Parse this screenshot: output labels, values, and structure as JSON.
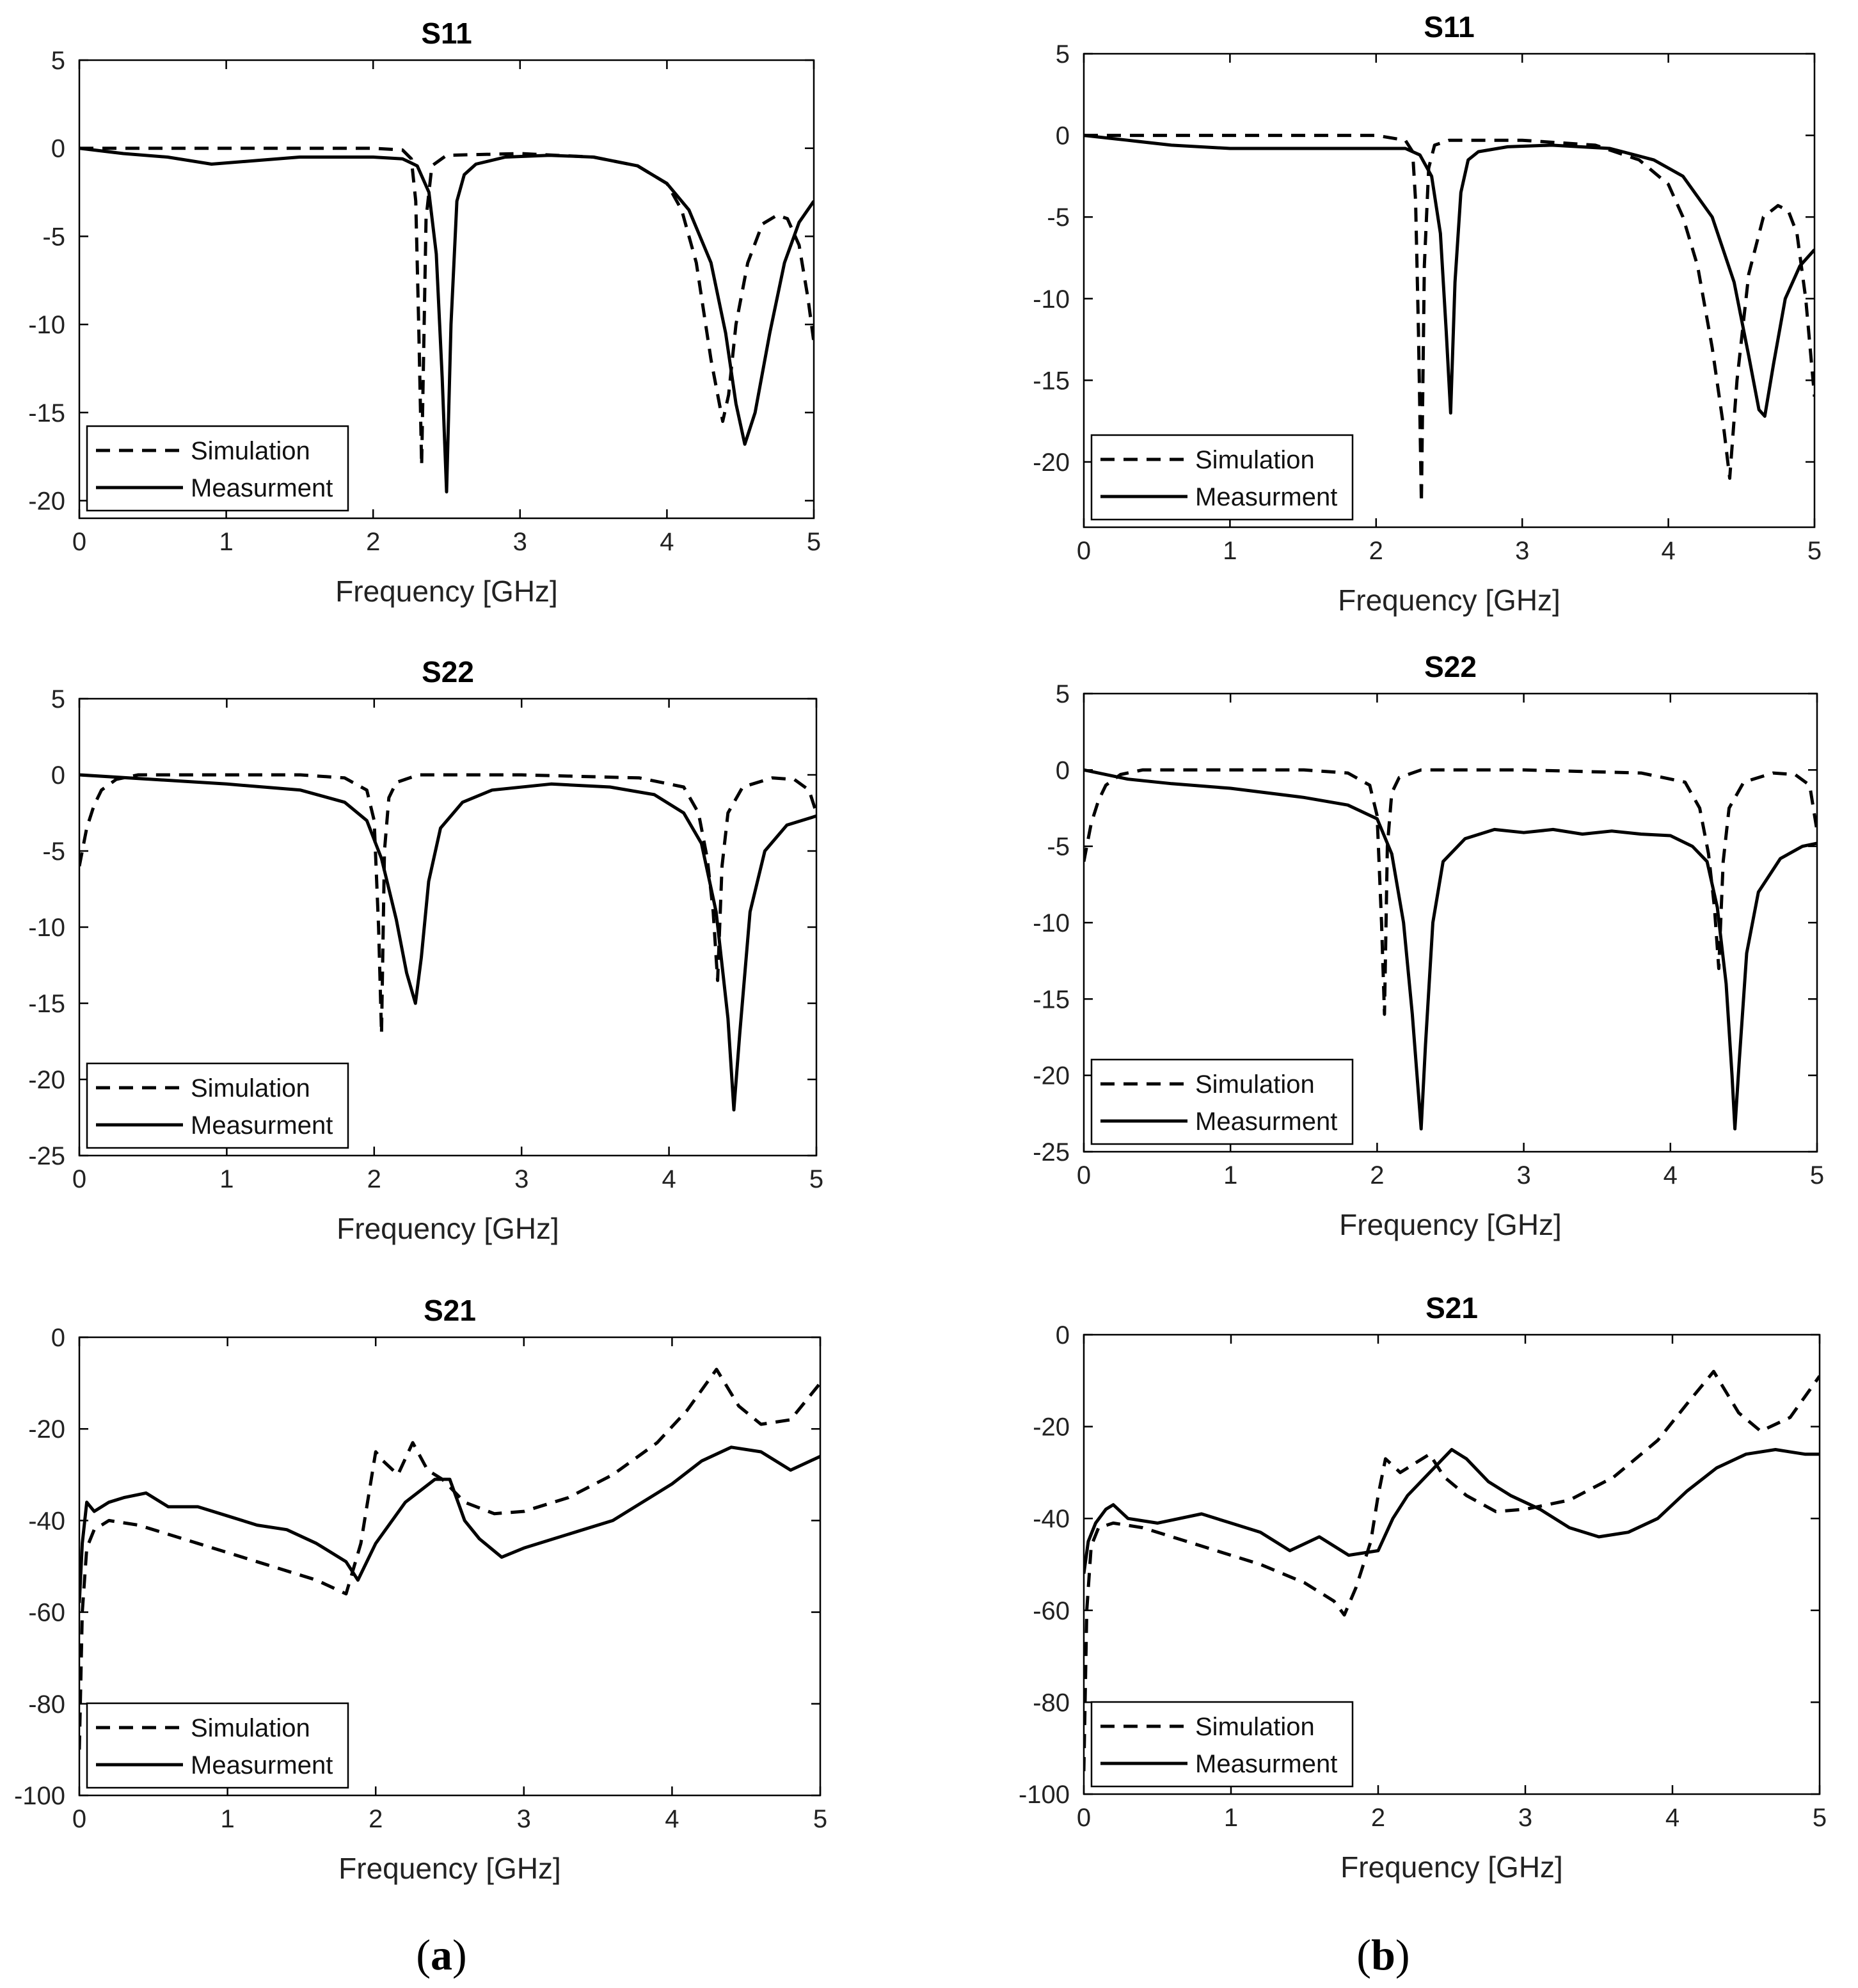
{
  "panel_labels": [
    {
      "open": "(",
      "letter": "a",
      "close": ")"
    },
    {
      "open": "(",
      "letter": "b",
      "close": ")"
    }
  ],
  "chart_data": [
    {
      "id": "a-s11",
      "type": "line",
      "title": "S11",
      "xlabel": "Frequency [GHz]",
      "ylabel": "",
      "xlim": [
        0,
        5
      ],
      "ylim": [
        -21,
        5
      ],
      "xticks": [
        0,
        1,
        2,
        3,
        4,
        5
      ],
      "yticks": [
        5,
        0,
        -5,
        -10,
        -15,
        -20
      ],
      "legend": {
        "position": "bottom-left",
        "entries": [
          "Simulation",
          "Measurment"
        ]
      },
      "series": [
        {
          "name": "Simulation",
          "style": "dashed",
          "x": [
            0,
            0.5,
            1,
            1.5,
            2.0,
            2.2,
            2.26,
            2.29,
            2.31,
            2.33,
            2.36,
            2.4,
            2.5,
            3.0,
            3.5,
            3.8,
            4.0,
            4.1,
            4.2,
            4.3,
            4.38,
            4.42,
            4.47,
            4.55,
            4.65,
            4.75,
            4.82,
            4.9,
            4.96,
            5.0
          ],
          "y": [
            0,
            0,
            0,
            0,
            0,
            -0.1,
            -0.6,
            -3,
            -10,
            -18,
            -4,
            -1,
            -0.4,
            -0.3,
            -0.5,
            -1.0,
            -2.0,
            -3.5,
            -6.5,
            -12,
            -15.5,
            -14,
            -10,
            -6.5,
            -4.3,
            -3.8,
            -4.0,
            -5.5,
            -8.5,
            -11
          ]
        },
        {
          "name": "Measurment",
          "style": "solid",
          "x": [
            0,
            0.3,
            0.6,
            0.9,
            1.2,
            1.5,
            2.0,
            2.2,
            2.3,
            2.38,
            2.43,
            2.47,
            2.5,
            2.53,
            2.57,
            2.62,
            2.7,
            2.9,
            3.2,
            3.5,
            3.8,
            4.0,
            4.15,
            4.3,
            4.4,
            4.47,
            4.53,
            4.6,
            4.7,
            4.8,
            4.9,
            5.0
          ],
          "y": [
            0,
            -0.3,
            -0.5,
            -0.9,
            -0.7,
            -0.5,
            -0.5,
            -0.6,
            -1.0,
            -2.5,
            -6,
            -13,
            -19.5,
            -10,
            -3,
            -1.5,
            -0.9,
            -0.5,
            -0.4,
            -0.5,
            -1.0,
            -2.0,
            -3.5,
            -6.5,
            -10.5,
            -14.5,
            -16.8,
            -15,
            -10.5,
            -6.5,
            -4.2,
            -3.0
          ]
        }
      ]
    },
    {
      "id": "b-s11",
      "type": "line",
      "title": "S11",
      "xlabel": "Frequency [GHz]",
      "ylabel": "",
      "xlim": [
        0,
        5
      ],
      "ylim": [
        -24,
        5
      ],
      "xticks": [
        0,
        1,
        2,
        3,
        4,
        5
      ],
      "yticks": [
        5,
        0,
        -5,
        -10,
        -15,
        -20
      ],
      "legend": {
        "position": "bottom-left",
        "entries": [
          "Simulation",
          "Measurment"
        ]
      },
      "series": [
        {
          "name": "Simulation",
          "style": "dashed",
          "x": [
            0,
            0.5,
            1,
            1.5,
            2.0,
            2.2,
            2.25,
            2.27,
            2.29,
            2.31,
            2.33,
            2.36,
            2.4,
            2.5,
            3.0,
            3.5,
            3.8,
            4.0,
            4.1,
            4.2,
            4.3,
            4.38,
            4.42,
            4.47,
            4.55,
            4.65,
            4.75,
            4.82,
            4.88,
            4.94,
            5.0
          ],
          "y": [
            0,
            0,
            0,
            0,
            0,
            -0.3,
            -1,
            -4,
            -12,
            -22.5,
            -8,
            -2,
            -0.6,
            -0.3,
            -0.3,
            -0.6,
            -1.5,
            -3.0,
            -5.0,
            -8.0,
            -13,
            -18,
            -21,
            -15,
            -8.5,
            -5.0,
            -4.3,
            -4.6,
            -6,
            -10,
            -16
          ]
        },
        {
          "name": "Measurment",
          "style": "solid",
          "x": [
            0,
            0.3,
            0.6,
            1.0,
            1.5,
            2.0,
            2.2,
            2.3,
            2.38,
            2.44,
            2.48,
            2.51,
            2.54,
            2.58,
            2.63,
            2.7,
            2.9,
            3.2,
            3.6,
            3.9,
            4.1,
            4.3,
            4.45,
            4.55,
            4.62,
            4.66,
            4.72,
            4.8,
            4.9,
            5.0
          ],
          "y": [
            0,
            -0.3,
            -0.6,
            -0.8,
            -0.8,
            -0.8,
            -0.8,
            -1.2,
            -2.5,
            -6,
            -12,
            -17,
            -9,
            -3.5,
            -1.5,
            -1.0,
            -0.7,
            -0.6,
            -0.8,
            -1.5,
            -2.5,
            -5.0,
            -9.0,
            -13.5,
            -16.8,
            -17.2,
            -14,
            -10,
            -8.0,
            -7.0
          ]
        }
      ]
    },
    {
      "id": "a-s22",
      "type": "line",
      "title": "S22",
      "xlabel": "Frequency [GHz]",
      "ylabel": "",
      "xlim": [
        0,
        5
      ],
      "ylim": [
        -25,
        5
      ],
      "xticks": [
        0,
        1,
        2,
        3,
        4,
        5
      ],
      "yticks": [
        5,
        0,
        -5,
        -10,
        -15,
        -20,
        -25
      ],
      "legend": {
        "position": "bottom-left",
        "entries": [
          "Simulation",
          "Measurment"
        ]
      },
      "series": [
        {
          "name": "Simulation",
          "style": "dashed",
          "x": [
            0,
            0.05,
            0.1,
            0.15,
            0.25,
            0.4,
            1.0,
            1.5,
            1.8,
            1.95,
            2.0,
            2.03,
            2.05,
            2.07,
            2.1,
            2.15,
            2.3,
            3.0,
            3.8,
            4.1,
            4.2,
            4.26,
            4.3,
            4.33,
            4.36,
            4.4,
            4.5,
            4.7,
            4.85,
            4.95,
            5.0
          ],
          "y": [
            -6,
            -3.5,
            -2,
            -1,
            -0.3,
            0,
            0,
            0,
            -0.2,
            -1,
            -3,
            -10,
            -17,
            -5,
            -1.5,
            -0.5,
            0,
            0,
            -0.2,
            -0.8,
            -2.5,
            -5.5,
            -9,
            -13.5,
            -6,
            -2.5,
            -0.8,
            -0.2,
            -0.3,
            -1.0,
            -2.5
          ]
        },
        {
          "name": "Measurment",
          "style": "solid",
          "x": [
            0,
            0.5,
            1.0,
            1.5,
            1.8,
            1.95,
            2.05,
            2.15,
            2.22,
            2.28,
            2.32,
            2.37,
            2.45,
            2.6,
            2.8,
            3.2,
            3.6,
            3.9,
            4.1,
            4.22,
            4.32,
            4.4,
            4.44,
            4.48,
            4.55,
            4.65,
            4.8,
            5.0
          ],
          "y": [
            0,
            -0.3,
            -0.6,
            -1.0,
            -1.8,
            -3.0,
            -5.5,
            -9.5,
            -13,
            -15,
            -12,
            -7,
            -3.5,
            -1.8,
            -1.0,
            -0.6,
            -0.8,
            -1.3,
            -2.5,
            -4.5,
            -9,
            -16,
            -22,
            -17,
            -9,
            -5.0,
            -3.3,
            -2.7
          ]
        }
      ]
    },
    {
      "id": "b-s22",
      "type": "line",
      "title": "S22",
      "xlabel": "Frequency [GHz]",
      "ylabel": "",
      "xlim": [
        0,
        5
      ],
      "ylim": [
        -25,
        5
      ],
      "xticks": [
        0,
        1,
        2,
        3,
        4,
        5
      ],
      "yticks": [
        5,
        0,
        -5,
        -10,
        -15,
        -20,
        -25
      ],
      "legend": {
        "position": "bottom-left",
        "entries": [
          "Simulation",
          "Measurment"
        ]
      },
      "series": [
        {
          "name": "Simulation",
          "style": "dashed",
          "x": [
            0,
            0.05,
            0.1,
            0.15,
            0.25,
            0.4,
            1.0,
            1.5,
            1.8,
            1.95,
            2.0,
            2.03,
            2.05,
            2.07,
            2.1,
            2.15,
            2.3,
            3.0,
            3.8,
            4.1,
            4.2,
            4.26,
            4.3,
            4.33,
            4.36,
            4.4,
            4.5,
            4.7,
            4.85,
            4.95,
            5.0
          ],
          "y": [
            -6,
            -3.5,
            -2,
            -1,
            -0.3,
            0,
            0,
            0,
            -0.2,
            -1,
            -3,
            -10,
            -16,
            -5,
            -1.5,
            -0.5,
            0,
            0,
            -0.2,
            -0.8,
            -2.5,
            -5.5,
            -9,
            -13,
            -6,
            -2.5,
            -0.8,
            -0.2,
            -0.3,
            -1.0,
            -4.0
          ]
        },
        {
          "name": "Measurment",
          "style": "solid",
          "x": [
            0,
            0.3,
            0.6,
            1.0,
            1.5,
            1.8,
            2.0,
            2.1,
            2.18,
            2.24,
            2.28,
            2.3,
            2.33,
            2.38,
            2.45,
            2.6,
            2.8,
            3.0,
            3.2,
            3.4,
            3.6,
            3.8,
            4.0,
            4.15,
            4.25,
            4.32,
            4.38,
            4.42,
            4.44,
            4.47,
            4.52,
            4.6,
            4.75,
            4.9,
            5.0
          ],
          "y": [
            0,
            -0.6,
            -0.9,
            -1.2,
            -1.8,
            -2.3,
            -3.2,
            -5.5,
            -10,
            -16,
            -21,
            -23.5,
            -18,
            -10,
            -6,
            -4.5,
            -3.9,
            -4.1,
            -3.9,
            -4.2,
            -4.0,
            -4.2,
            -4.3,
            -5.0,
            -6.0,
            -9,
            -14,
            -20,
            -23.5,
            -19,
            -12,
            -8.0,
            -5.8,
            -5.0,
            -4.8
          ]
        }
      ]
    },
    {
      "id": "a-s21",
      "type": "line",
      "title": "S21",
      "xlabel": "Frequency [GHz]",
      "ylabel": "",
      "xlim": [
        0,
        5
      ],
      "ylim": [
        -100,
        0
      ],
      "xticks": [
        0,
        1,
        2,
        3,
        4,
        5
      ],
      "yticks": [
        0,
        -20,
        -40,
        -60,
        -80,
        -100
      ],
      "legend": {
        "position": "bottom-left",
        "entries": [
          "Simulation",
          "Measurment"
        ]
      },
      "series": [
        {
          "name": "Simulation",
          "style": "dashed",
          "x": [
            0,
            0.02,
            0.05,
            0.1,
            0.2,
            0.4,
            0.8,
            1.2,
            1.6,
            1.8,
            1.9,
            1.95,
            2.0,
            2.05,
            2.15,
            2.25,
            2.35,
            2.45,
            2.6,
            2.8,
            3.0,
            3.3,
            3.6,
            3.9,
            4.1,
            4.3,
            4.45,
            4.6,
            4.8,
            5.0
          ],
          "y": [
            -90,
            -60,
            -46,
            -42,
            -40,
            -41,
            -45,
            -49,
            -53,
            -56,
            -45,
            -35,
            -25,
            -27,
            -30,
            -23,
            -29,
            -31,
            -36,
            -38.5,
            -38,
            -35,
            -30,
            -23,
            -16,
            -7,
            -15,
            -19,
            -18,
            -10
          ]
        },
        {
          "name": "Measurment",
          "style": "solid",
          "x": [
            0,
            0.02,
            0.05,
            0.1,
            0.2,
            0.3,
            0.45,
            0.6,
            0.8,
            1.0,
            1.2,
            1.4,
            1.6,
            1.8,
            1.88,
            2.0,
            2.2,
            2.4,
            2.5,
            2.6,
            2.7,
            2.85,
            3.0,
            3.2,
            3.4,
            3.6,
            3.8,
            4.0,
            4.2,
            4.4,
            4.6,
            4.8,
            5.0
          ],
          "y": [
            -58,
            -45,
            -36,
            -38,
            -36,
            -35,
            -34,
            -37,
            -37,
            -39,
            -41,
            -42,
            -45,
            -49,
            -53,
            -45,
            -36,
            -31,
            -31,
            -40,
            -44,
            -48,
            -46,
            -44,
            -42,
            -40,
            -36,
            -32,
            -27,
            -24,
            -25,
            -29,
            -26
          ]
        }
      ]
    },
    {
      "id": "b-s21",
      "type": "line",
      "title": "S21",
      "xlabel": "Frequency [GHz]",
      "ylabel": "",
      "xlim": [
        0,
        5
      ],
      "ylim": [
        -100,
        0
      ],
      "xticks": [
        0,
        1,
        2,
        3,
        4,
        5
      ],
      "yticks": [
        0,
        -20,
        -40,
        -60,
        -80,
        -100
      ],
      "legend": {
        "position": "bottom-left",
        "entries": [
          "Simulation",
          "Measurment"
        ]
      },
      "series": [
        {
          "name": "Simulation",
          "style": "dashed",
          "x": [
            0,
            0.02,
            0.05,
            0.1,
            0.2,
            0.4,
            0.8,
            1.2,
            1.5,
            1.7,
            1.77,
            1.85,
            1.95,
            2.0,
            2.05,
            2.15,
            2.25,
            2.35,
            2.45,
            2.6,
            2.8,
            3.0,
            3.3,
            3.6,
            3.9,
            4.1,
            4.28,
            4.45,
            4.6,
            4.8,
            5.0
          ],
          "y": [
            -95,
            -60,
            -46,
            -42,
            -41,
            -42,
            -46,
            -50,
            -54,
            -58,
            -61,
            -55,
            -45,
            -35,
            -27,
            -30,
            -28,
            -26,
            -31,
            -35,
            -38.5,
            -38,
            -36,
            -31,
            -23,
            -15,
            -8,
            -17,
            -21,
            -18,
            -9
          ]
        },
        {
          "name": "Measurment",
          "style": "solid",
          "x": [
            0,
            0.03,
            0.08,
            0.15,
            0.2,
            0.3,
            0.5,
            0.8,
            1.0,
            1.2,
            1.4,
            1.6,
            1.8,
            2.0,
            2.1,
            2.2,
            2.35,
            2.5,
            2.6,
            2.75,
            2.9,
            3.1,
            3.3,
            3.5,
            3.7,
            3.9,
            4.1,
            4.3,
            4.5,
            4.7,
            4.9,
            5.0
          ],
          "y": [
            -52,
            -45,
            -41,
            -38,
            -37,
            -40,
            -41,
            -39,
            -41,
            -43,
            -47,
            -44,
            -48,
            -47,
            -40,
            -35,
            -30,
            -25,
            -27,
            -32,
            -35,
            -38,
            -42,
            -44,
            -43,
            -40,
            -34,
            -29,
            -26,
            -25,
            -26,
            -26
          ]
        }
      ]
    }
  ]
}
